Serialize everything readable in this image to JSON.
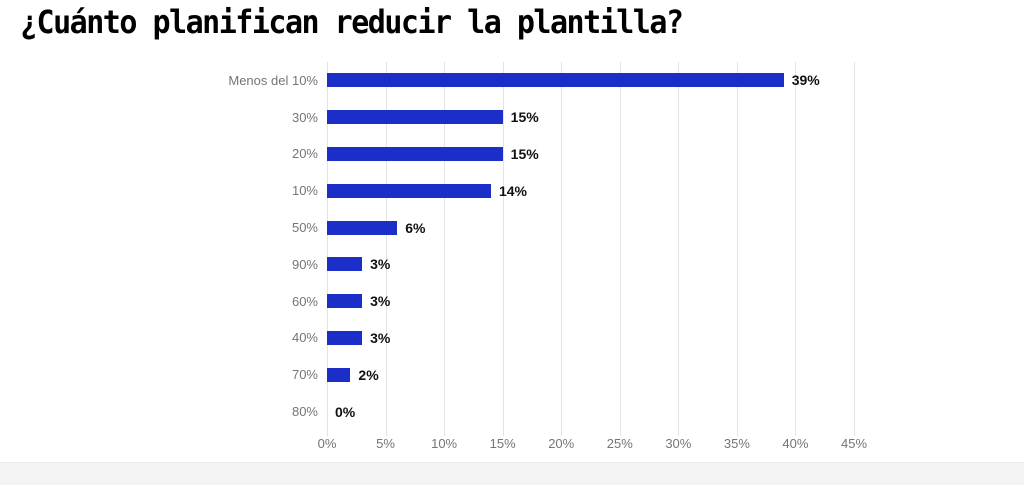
{
  "title": "¿Cuánto planifican reducir la plantilla?",
  "chart_data": {
    "type": "bar",
    "orientation": "horizontal",
    "title": "¿Cuánto planifican reducir la plantilla?",
    "categories": [
      "Menos del 10%",
      "30%",
      "20%",
      "10%",
      "50%",
      "90%",
      "60%",
      "40%",
      "70%",
      "80%"
    ],
    "values": [
      39,
      15,
      15,
      14,
      6,
      3,
      3,
      3,
      2,
      0
    ],
    "value_labels": [
      "39%",
      "15%",
      "15%",
      "14%",
      "6%",
      "3%",
      "3%",
      "3%",
      "2%",
      "0%"
    ],
    "x_ticks": [
      "0%",
      "5%",
      "10%",
      "15%",
      "20%",
      "25%",
      "30%",
      "35%",
      "40%",
      "45%"
    ],
    "x_tick_values": [
      0,
      5,
      10,
      15,
      20,
      25,
      30,
      35,
      40,
      45
    ],
    "xlim": [
      0,
      45
    ],
    "grid": true,
    "legend_position": "none",
    "bar_color": "#1c2ec8",
    "gridline_color": "#e3e3e3",
    "category_label_color": "#757575",
    "value_label_color": "#111111",
    "title_color": "#000000"
  }
}
